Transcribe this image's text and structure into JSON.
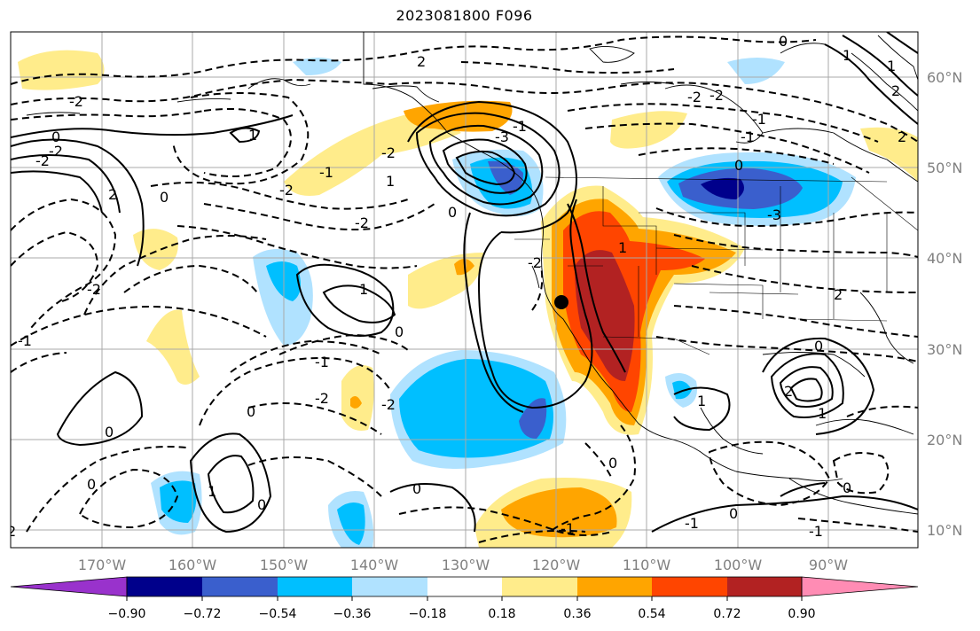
{
  "title": "2023081800 F096",
  "lat_labels": [
    "60°N",
    "50°N",
    "40°N",
    "30°N",
    "20°N",
    "10°N"
  ],
  "lon_labels": [
    "170°W",
    "160°W",
    "150°W",
    "140°W",
    "130°W",
    "120°W",
    "110°W",
    "100°W",
    "90°W"
  ],
  "colorbar": {
    "ticks": [
      "−0.90",
      "−0.72",
      "−0.54",
      "−0.36",
      "−0.18",
      "0.18",
      "0.36",
      "0.54",
      "0.72",
      "0.90"
    ],
    "colors": [
      "#9932cc",
      "#00008b",
      "#3a5fcd",
      "#00bfff",
      "#b0e2ff",
      "#ffffff",
      "#ffec8b",
      "#ffa500",
      "#ff4500",
      "#b22222",
      "#ff8cb4"
    ]
  },
  "contour_labels": [
    "2",
    "-2",
    "-2",
    "1",
    "0",
    "-2",
    "2",
    "-2",
    "1",
    "0",
    "0",
    "-2",
    "-3",
    "-2",
    "-1",
    "0",
    "2",
    "-3",
    "-2",
    "0",
    "-1",
    "-1",
    "-2",
    "2",
    "-2",
    "1",
    "0",
    "-1",
    "1",
    "0",
    "0",
    "-2",
    "1",
    "2",
    "1",
    "0",
    "0",
    "-1",
    "0",
    "-1",
    "0",
    "-2",
    "1",
    "-1",
    "-2",
    "2",
    "0",
    "0",
    "0",
    "-1",
    "1",
    "1",
    "-1",
    "2"
  ]
}
